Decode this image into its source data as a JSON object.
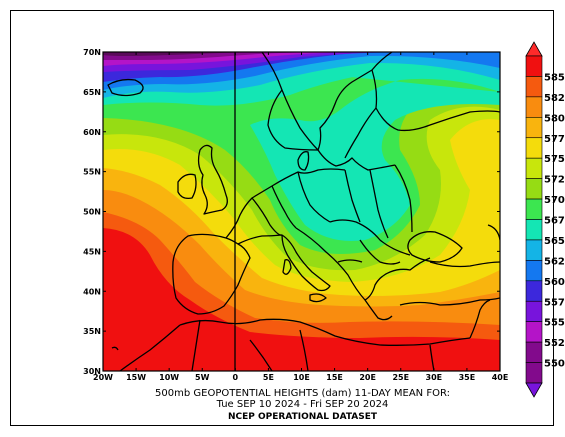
{
  "title_line1": "500mb GEOPOTENTIAL HEIGHTS (dam)    11-DAY MEAN FOR:",
  "title_line2": "Tue SEP 10 2024 - Fri SEP 20 2024",
  "dataset": "NCEP OPERATIONAL DATASET",
  "map": {
    "lon_ticks": [
      "20W",
      "15W",
      "10W",
      "5W",
      "0",
      "5E",
      "10E",
      "15E",
      "20E",
      "25E",
      "30E",
      "35E",
      "40E"
    ],
    "lat_ticks": [
      "70N",
      "65N",
      "60N",
      "55N",
      "50N",
      "45N",
      "40N",
      "35N",
      "30N"
    ],
    "lon_range": [
      -20,
      40
    ],
    "lat_range": [
      30,
      70
    ]
  },
  "colorbar": {
    "levels": [
      "585",
      "582.5",
      "580",
      "577.5",
      "575",
      "572.5",
      "570",
      "567.5",
      "565",
      "562.5",
      "560",
      "557.5",
      "555",
      "552.5",
      "550"
    ],
    "colors": [
      "#f01010",
      "#f55a0f",
      "#f98c0f",
      "#f9b40e",
      "#f4dc0c",
      "#c8e60c",
      "#96dc14",
      "#3ce650",
      "#14e6b4",
      "#14b4e6",
      "#1478f0",
      "#3c28dc",
      "#7814dc",
      "#b414c8",
      "#820a8c",
      "#ff2a2a"
    ]
  }
}
